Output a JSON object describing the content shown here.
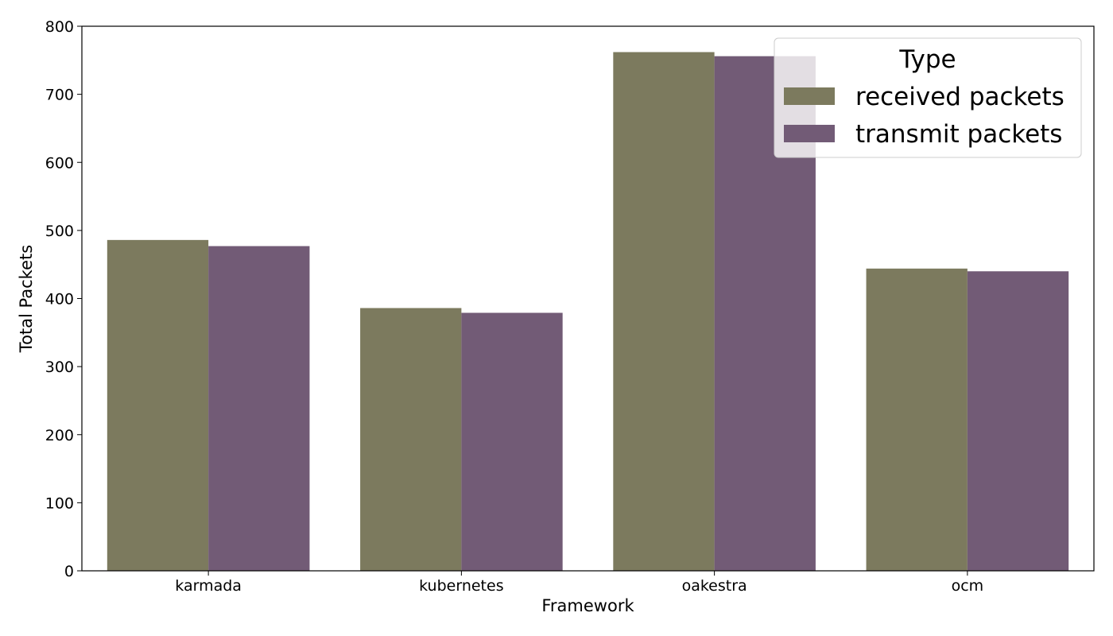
{
  "chart_data": {
    "type": "bar",
    "xlabel": "Framework",
    "ylabel": "Total Packets",
    "categories": [
      "karmada",
      "kubernetes",
      "oakestra",
      "ocm"
    ],
    "series": [
      {
        "name": "received packets",
        "values": [
          486,
          386,
          762,
          444
        ],
        "color": "#7c7a5e"
      },
      {
        "name": "transmit packets",
        "values": [
          477,
          379,
          756,
          440
        ],
        "color": "#725b76"
      }
    ],
    "ylim": [
      0,
      800
    ],
    "yticks": [
      0,
      100,
      200,
      300,
      400,
      500,
      600,
      700,
      800
    ],
    "grid": false,
    "legend": {
      "title": "Type",
      "placement": "top-right"
    }
  }
}
